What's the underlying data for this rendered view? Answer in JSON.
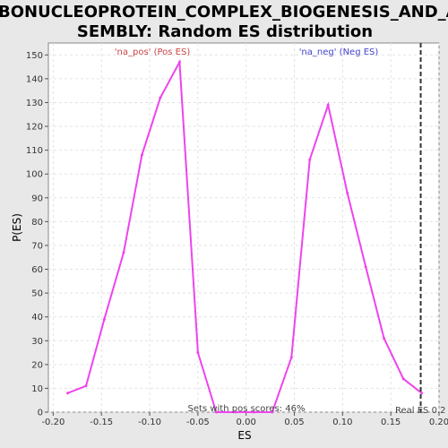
{
  "chart_data": {
    "type": "line",
    "title_lines": [
      "RIBONUCLEOPROTEIN_COMPLEX_BIOGENESIS_AND_AS",
      "SEMBLY: Random ES distribution"
    ],
    "xlabel": "ES",
    "ylabel": "P(ES)",
    "xlim": [
      -0.205,
      0.2
    ],
    "ylim": [
      0,
      155
    ],
    "xticks": [
      -0.2,
      -0.15,
      -0.1,
      -0.05,
      0.0,
      0.05,
      0.1,
      0.15,
      0.2
    ],
    "xtick_labels": [
      "-0.20",
      "-0.15",
      "-0.10",
      "-0.05",
      "0.00",
      "0.05",
      "0.10",
      "0.15",
      "0.20"
    ],
    "yticks": [
      0,
      10,
      20,
      30,
      40,
      50,
      60,
      70,
      80,
      90,
      100,
      110,
      120,
      130,
      140,
      150
    ],
    "grid": true,
    "series": [
      {
        "color": "#ee44ee",
        "x": [
          -0.185,
          -0.166,
          -0.147,
          -0.127,
          -0.108,
          -0.089,
          -0.069,
          -0.05,
          -0.031,
          -0.011,
          0.008,
          0.027,
          0.047,
          0.066,
          0.085,
          0.105,
          0.124,
          0.143,
          0.163,
          0.182
        ],
        "y": [
          8,
          11,
          39,
          67,
          108,
          132,
          147,
          25,
          0,
          0,
          0,
          0,
          23,
          106,
          129,
          92,
          61,
          31,
          14,
          8
        ]
      }
    ],
    "annotations": {
      "pos_label": "'na_pos' (Pos ES)",
      "pos_color": "#cc4444",
      "neg_label": "'na_neg' (Neg ES)",
      "neg_color": "#4444cc",
      "pos_scores_note": "Sets with pos scores: 46%",
      "real_es_note": "Real ES 0.2",
      "real_es": 0.181
    }
  }
}
